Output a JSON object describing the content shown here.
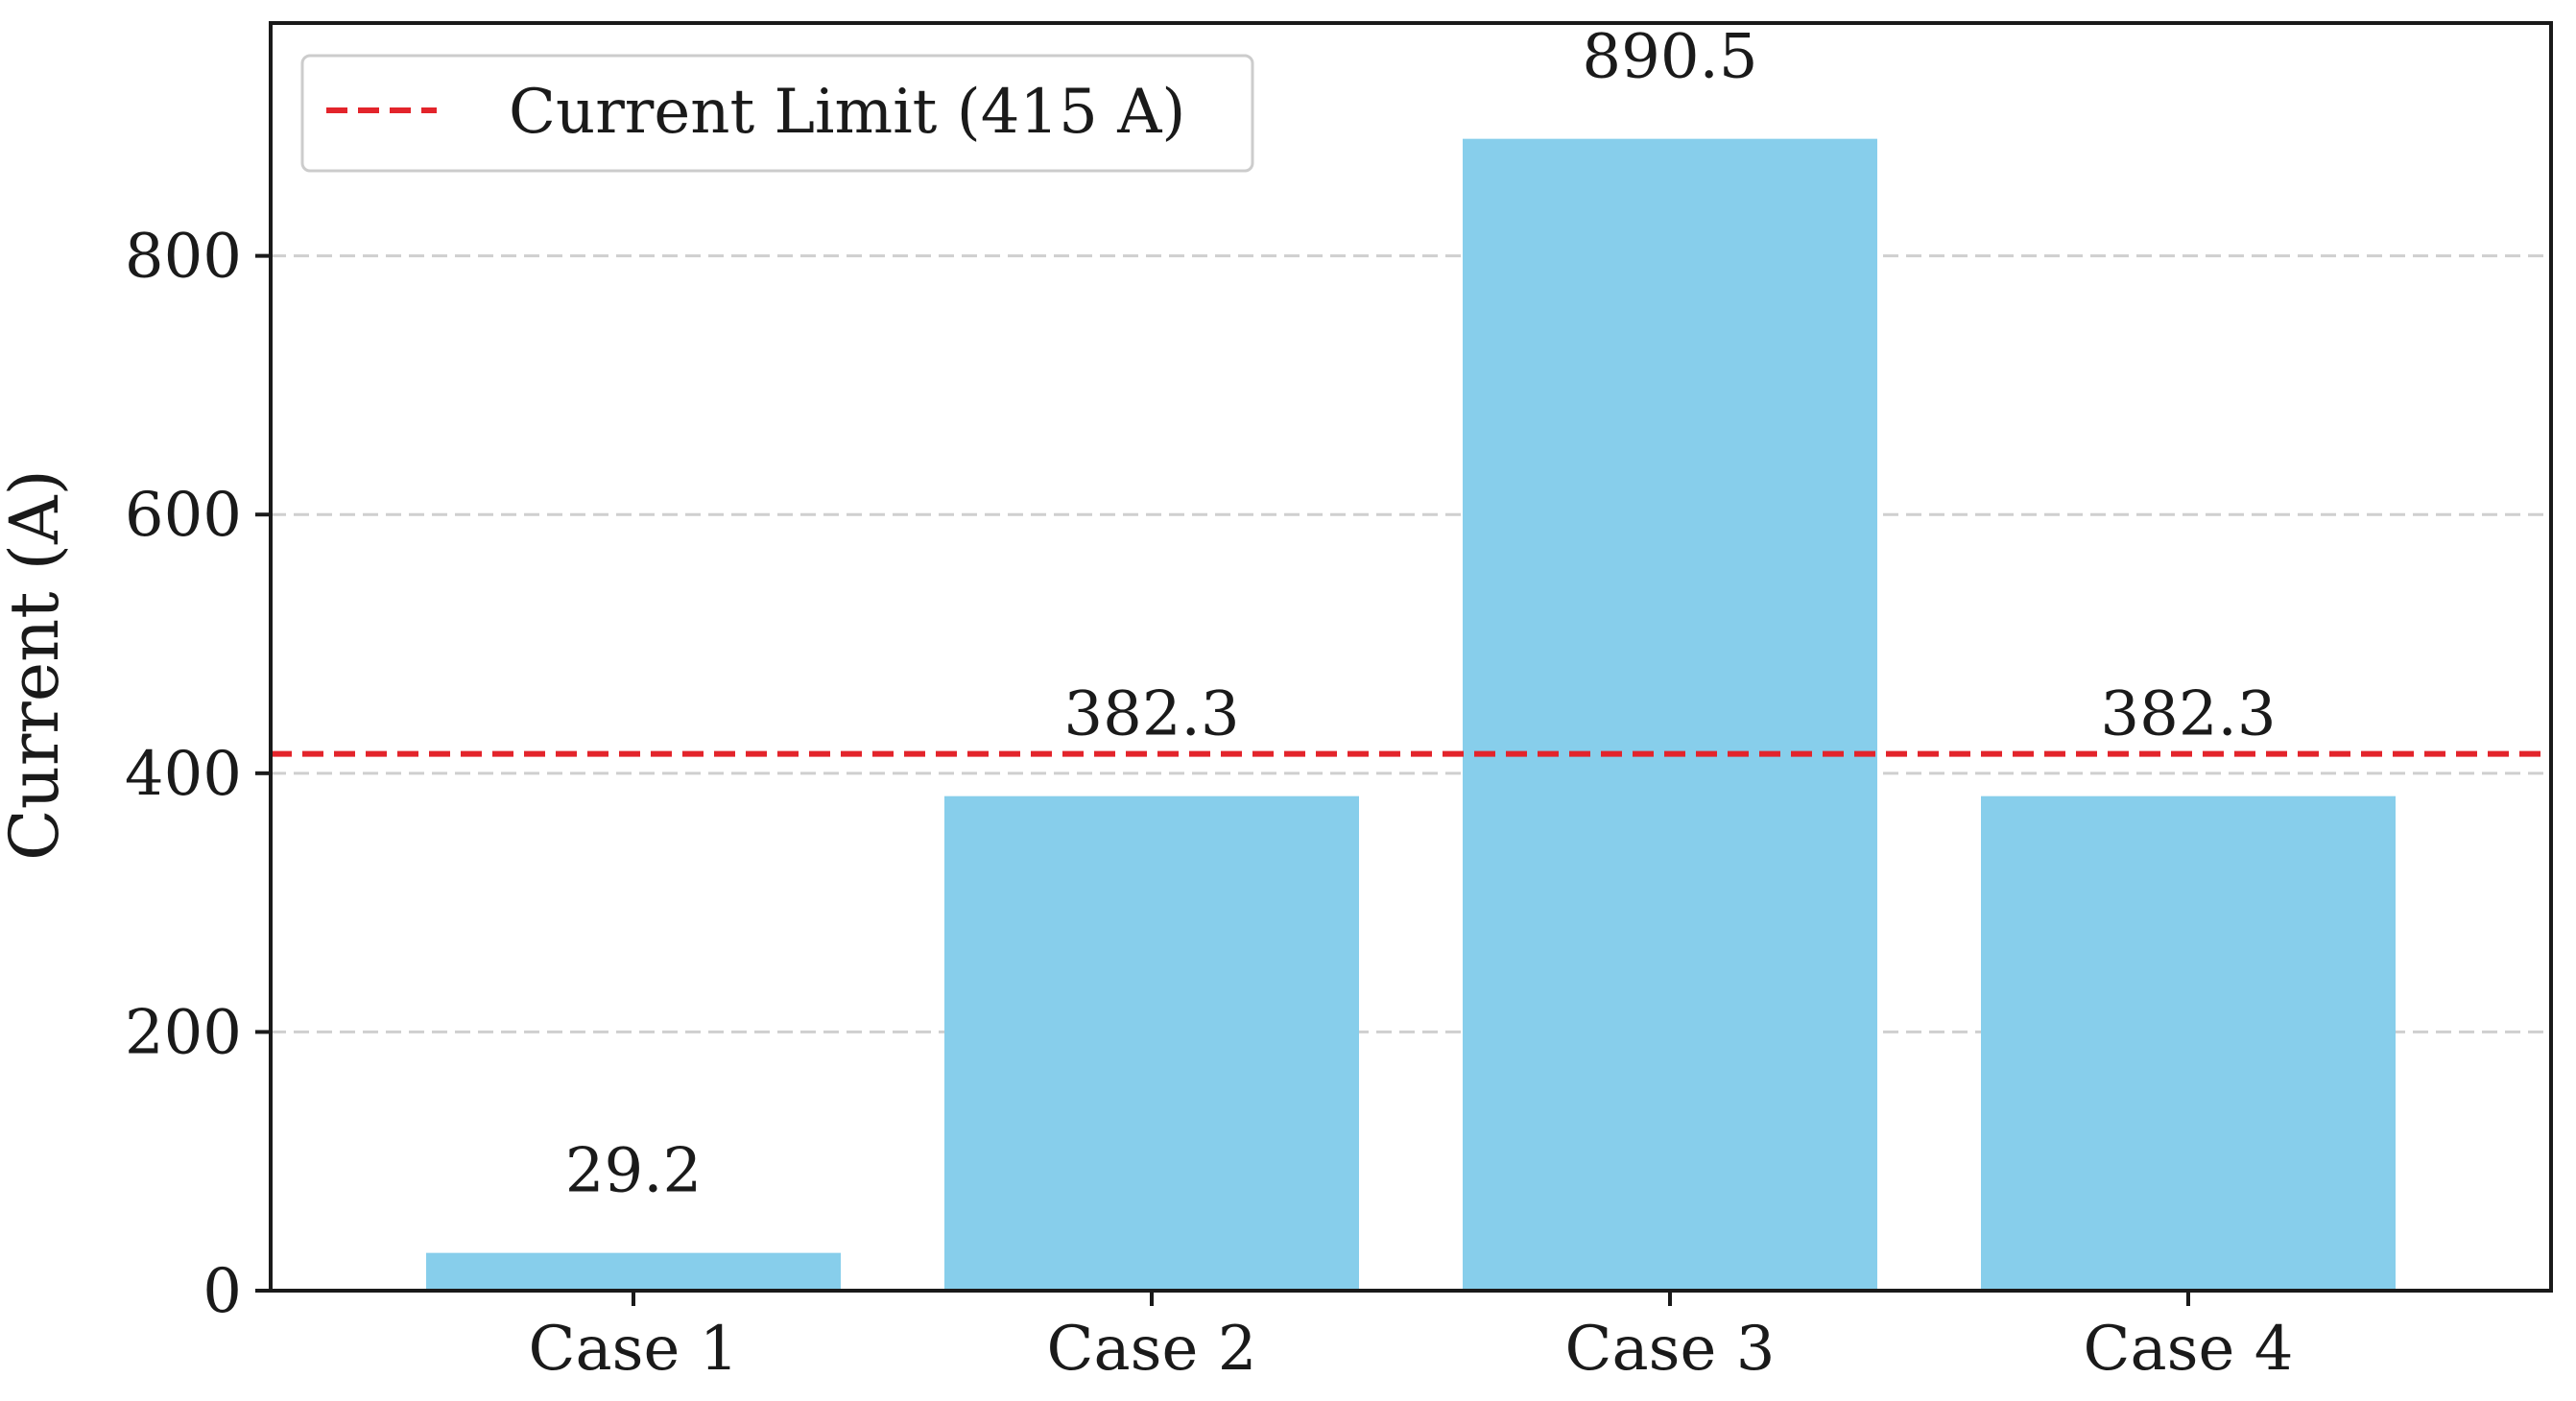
{
  "chart_data": {
    "type": "bar",
    "title": "",
    "xlabel": "",
    "ylabel": "Current (A)",
    "categories": [
      "Case 1",
      "Case 2",
      "Case 3",
      "Case 4"
    ],
    "values": [
      29.2,
      382.3,
      890.5,
      382.3
    ],
    "value_labels": [
      "29.2",
      "382.3",
      "890.5",
      "382.3"
    ],
    "ylim": [
      0,
      980
    ],
    "yticks": [
      0,
      200,
      400,
      600,
      800
    ],
    "ytick_labels": [
      "0",
      "200",
      "400",
      "600",
      "800"
    ],
    "grid": "horizontal-dashed",
    "bar_color": "#87CEEB",
    "reference_line": {
      "value": 415,
      "label": "Current Limit (415 A)",
      "color": "#E3242B",
      "style": "dashed"
    },
    "legend": {
      "position": "top-left",
      "entries": [
        "Current Limit (415 A)"
      ]
    }
  }
}
